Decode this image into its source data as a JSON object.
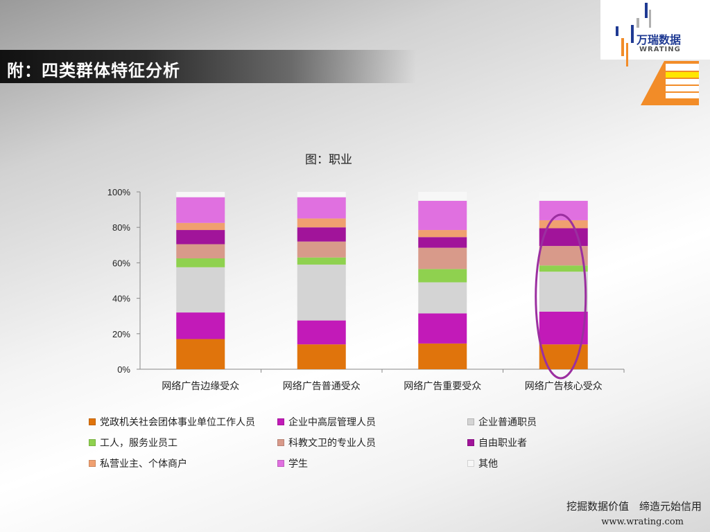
{
  "slide": {
    "title": "附：四类群体特征分析",
    "footer_slogan": "挖掘数据价值　缔造元始信用",
    "footer_url": "www.wrating.com"
  },
  "logo": {
    "cn": "万瑞数据",
    "en": "WRATING",
    "colors": {
      "blue": "#1f3a93",
      "orange": "#f28c28",
      "yellow": "#ffe600",
      "gray": "#b0b0b0"
    }
  },
  "annotation": {
    "shape": "ellipse",
    "target_category": "网络广告核心受众",
    "color": "#9b2fa0"
  },
  "chart_data": {
    "type": "bar",
    "stacked": true,
    "normalized_percent": true,
    "title": "图：职业",
    "xlabel": "",
    "ylabel": "",
    "ylim": [
      0,
      100
    ],
    "yticks": [
      "0%",
      "20%",
      "40%",
      "60%",
      "80%",
      "100%"
    ],
    "legend_position": "bottom",
    "categories": [
      "网络广告边缘受众",
      "网络广告普通受众",
      "网络广告重要受众",
      "网络广告核心受众"
    ],
    "series": [
      {
        "name": "党政机关社会团体事业单位工作人员",
        "color": "#e0740c",
        "values": [
          17,
          14,
          14.5,
          14
        ]
      },
      {
        "name": "企业中高层管理人员",
        "color": "#c21ab8",
        "values": [
          15,
          13.5,
          17,
          18.5
        ]
      },
      {
        "name": "企业普通职员",
        "color": "#d4d4d4",
        "values": [
          25.5,
          31.5,
          17.5,
          22.5
        ]
      },
      {
        "name": "工人，服务业员工",
        "color": "#8fd14f",
        "values": [
          5,
          4,
          7.5,
          3.5
        ]
      },
      {
        "name": "科教文卫的专业人员",
        "color": "#d89a8a",
        "values": [
          8,
          9,
          12,
          11
        ]
      },
      {
        "name": "自由职业者",
        "color": "#a1149a",
        "values": [
          8,
          8,
          6,
          10
        ]
      },
      {
        "name": "私营业主、个体商户",
        "color": "#f0a070",
        "values": [
          4,
          5,
          4,
          4.5
        ]
      },
      {
        "name": "学生",
        "color": "#e070e0",
        "values": [
          14.5,
          12,
          16.5,
          11
        ]
      },
      {
        "name": "其他",
        "color": "#f7f7f7",
        "values": [
          3,
          3,
          5,
          5
        ]
      }
    ]
  }
}
